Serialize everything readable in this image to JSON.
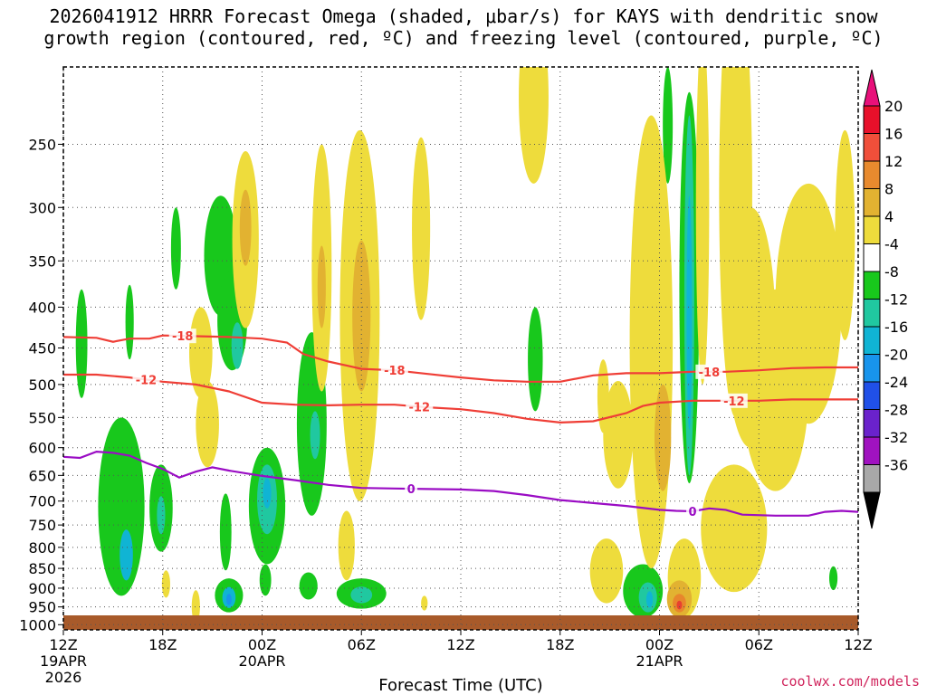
{
  "title_line1": "2026041912 HRRR Forecast Omega (shaded, μbar/s) for KAYS with dendritic snow",
  "title_line2": "growth region (contoured, red, ºC) and freezing level (contoured, purple, ºC)",
  "credit": "coolwx.com/models",
  "colors": {
    "sink_weak": "#eedc3c",
    "sink_mod": "#e2b231",
    "sink_strong": "#e8862c",
    "sink_max": "#e84030",
    "rise_weak": "#18c81c",
    "rise_mod": "#20c8a0",
    "rise_strong": "#10b4d4",
    "rise_max": "#1894ec",
    "dgz_line": "#ef3e36",
    "freezing_line": "#9a0cc4",
    "ground": "#a85a2a",
    "grid": "#555555"
  },
  "chart_data": {
    "type": "heatmap",
    "title": "2026041912 HRRR Forecast Omega (shaded, μbar/s) for KAYS with dendritic snow growth region (contoured, red, ºC) and freezing level (contoured, purple, ºC)",
    "xlabel": "Forecast Time (UTC)",
    "ylabel": "",
    "x_range_hours": [
      0,
      48
    ],
    "y_range_hPa": [
      200,
      1015
    ],
    "x_ticks": [
      {
        "hour": 0,
        "label": "12Z",
        "date": "19APR",
        "year": "2026"
      },
      {
        "hour": 6,
        "label": "18Z"
      },
      {
        "hour": 12,
        "label": "00Z",
        "date": "20APR"
      },
      {
        "hour": 18,
        "label": "06Z"
      },
      {
        "hour": 24,
        "label": "12Z"
      },
      {
        "hour": 30,
        "label": "18Z"
      },
      {
        "hour": 36,
        "label": "00Z",
        "date": "21APR"
      },
      {
        "hour": 42,
        "label": "06Z"
      },
      {
        "hour": 48,
        "label": "12Z"
      }
    ],
    "y_ticks": [
      250,
      300,
      350,
      400,
      450,
      500,
      550,
      600,
      650,
      700,
      750,
      800,
      850,
      900,
      950,
      1000
    ],
    "colorbar": {
      "levels": [
        20,
        16,
        12,
        8,
        4,
        -4,
        -8,
        -12,
        -16,
        -20,
        -24,
        -28,
        -32,
        -36
      ],
      "colors": [
        "#e8102a",
        "#f04f3a",
        "#e88a2e",
        "#e2b231",
        "#eedc3c",
        "#ffffff",
        "#18c81c",
        "#20c8a0",
        "#10b4d4",
        "#1894ec",
        "#2050e8",
        "#6a22cc",
        "#a012c0",
        "#a8a8a8"
      ],
      "top_arrow_color": "#e8107a",
      "bottom_arrow_color": "#000000"
    },
    "contours": [
      {
        "name": "-18",
        "label": "-18",
        "color": "#ef3e36",
        "labels_at_hours": [
          7.2,
          20.0,
          39.0
        ],
        "points": [
          [
            0,
            436
          ],
          [
            2,
            437
          ],
          [
            3,
            442
          ],
          [
            4,
            438
          ],
          [
            5.2,
            438
          ],
          [
            6,
            434
          ],
          [
            8,
            435
          ],
          [
            10,
            436
          ],
          [
            12,
            438
          ],
          [
            13.5,
            443
          ],
          [
            14.5,
            458
          ],
          [
            16,
            468
          ],
          [
            18,
            478
          ],
          [
            20,
            480
          ],
          [
            22,
            485
          ],
          [
            24,
            490
          ],
          [
            26,
            494
          ],
          [
            28,
            496
          ],
          [
            30,
            496
          ],
          [
            32,
            487
          ],
          [
            34,
            484
          ],
          [
            36,
            484
          ],
          [
            38,
            482
          ],
          [
            40,
            482
          ],
          [
            42,
            480
          ],
          [
            44,
            477
          ],
          [
            46,
            476
          ],
          [
            48,
            476
          ]
        ]
      },
      {
        "name": "-12",
        "label": "-12",
        "color": "#ef3e36",
        "labels_at_hours": [
          5.0,
          21.5,
          40.5
        ],
        "points": [
          [
            0,
            486
          ],
          [
            2,
            486
          ],
          [
            4,
            490
          ],
          [
            6,
            496
          ],
          [
            8,
            500
          ],
          [
            10,
            510
          ],
          [
            12,
            527
          ],
          [
            14,
            530
          ],
          [
            16,
            531
          ],
          [
            18,
            530
          ],
          [
            20,
            530
          ],
          [
            22,
            534
          ],
          [
            24,
            537
          ],
          [
            26,
            543
          ],
          [
            28,
            552
          ],
          [
            30,
            558
          ],
          [
            32,
            556
          ],
          [
            34,
            543
          ],
          [
            35,
            532
          ],
          [
            36,
            527
          ],
          [
            38,
            524
          ],
          [
            40,
            524
          ],
          [
            42,
            524
          ],
          [
            44,
            522
          ],
          [
            46,
            522
          ],
          [
            48,
            522
          ]
        ]
      },
      {
        "name": "0",
        "label": "0",
        "color": "#9a0cc4",
        "labels_at_hours": [
          21.0,
          38.0
        ],
        "points": [
          [
            0,
            616
          ],
          [
            1,
            618
          ],
          [
            2,
            607
          ],
          [
            3,
            609
          ],
          [
            4,
            614
          ],
          [
            5,
            627
          ],
          [
            6,
            638
          ],
          [
            7,
            654
          ],
          [
            8,
            643
          ],
          [
            9,
            635
          ],
          [
            10,
            641
          ],
          [
            12,
            651
          ],
          [
            14,
            659
          ],
          [
            16,
            668
          ],
          [
            18,
            674
          ],
          [
            20,
            675
          ],
          [
            22,
            676
          ],
          [
            24,
            677
          ],
          [
            26,
            680
          ],
          [
            28,
            688
          ],
          [
            30,
            698
          ],
          [
            32,
            704
          ],
          [
            34,
            710
          ],
          [
            36,
            718
          ],
          [
            37,
            720
          ],
          [
            38,
            721
          ],
          [
            39,
            715
          ],
          [
            40,
            718
          ],
          [
            41,
            728
          ],
          [
            43,
            730
          ],
          [
            45,
            730
          ],
          [
            46,
            722
          ],
          [
            47,
            720
          ],
          [
            48,
            722
          ]
        ]
      }
    ],
    "omega_regions": [
      {
        "cx": 1.1,
        "cy": 450,
        "rx": 0.35,
        "ry": 70,
        "value": -6
      },
      {
        "cx": 4.0,
        "cy": 420,
        "rx": 0.25,
        "ry": 45,
        "value": -6
      },
      {
        "cx": 3.5,
        "cy": 735,
        "rx": 1.4,
        "ry": 185,
        "value": -6
      },
      {
        "cx": 3.8,
        "cy": 820,
        "rx": 0.4,
        "ry": 60,
        "value": -14
      },
      {
        "cx": 5.9,
        "cy": 720,
        "rx": 0.7,
        "ry": 90,
        "value": -6
      },
      {
        "cx": 5.9,
        "cy": 730,
        "rx": 0.25,
        "ry": 40,
        "value": -10
      },
      {
        "cx": 6.8,
        "cy": 340,
        "rx": 0.3,
        "ry": 40,
        "value": -6
      },
      {
        "cx": 9.5,
        "cy": 350,
        "rx": 1.0,
        "ry": 60,
        "value": -6
      },
      {
        "cx": 10.2,
        "cy": 420,
        "rx": 0.9,
        "ry": 60,
        "value": -6
      },
      {
        "cx": 10.5,
        "cy": 448,
        "rx": 0.35,
        "ry": 30,
        "value": -10
      },
      {
        "cx": 9.8,
        "cy": 770,
        "rx": 0.35,
        "ry": 85,
        "value": -6
      },
      {
        "cx": 10.0,
        "cy": 920,
        "rx": 0.85,
        "ry": 45,
        "value": -6
      },
      {
        "cx": 10.0,
        "cy": 925,
        "rx": 0.4,
        "ry": 28,
        "value": -12
      },
      {
        "cx": 10.0,
        "cy": 930,
        "rx": 0.15,
        "ry": 15,
        "value": -16
      },
      {
        "cx": 12.3,
        "cy": 720,
        "rx": 1.1,
        "ry": 120,
        "value": -6
      },
      {
        "cx": 12.3,
        "cy": 700,
        "rx": 0.6,
        "ry": 70,
        "value": -10
      },
      {
        "cx": 12.3,
        "cy": 685,
        "rx": 0.25,
        "ry": 30,
        "value": -14
      },
      {
        "cx": 12.2,
        "cy": 880,
        "rx": 0.35,
        "ry": 40,
        "value": -6
      },
      {
        "cx": 15.0,
        "cy": 580,
        "rx": 0.9,
        "ry": 150,
        "value": -6
      },
      {
        "cx": 15.2,
        "cy": 580,
        "rx": 0.3,
        "ry": 40,
        "value": -10
      },
      {
        "cx": 14.8,
        "cy": 895,
        "rx": 0.55,
        "ry": 35,
        "value": -6
      },
      {
        "cx": 18.0,
        "cy": 915,
        "rx": 1.5,
        "ry": 40,
        "value": -6
      },
      {
        "cx": 18.0,
        "cy": 918,
        "rx": 0.65,
        "ry": 22,
        "value": -10
      },
      {
        "cx": 28.5,
        "cy": 470,
        "rx": 0.45,
        "ry": 70,
        "value": -6
      },
      {
        "cx": 35.0,
        "cy": 910,
        "rx": 1.2,
        "ry": 70,
        "value": -6
      },
      {
        "cx": 35.3,
        "cy": 925,
        "rx": 0.55,
        "ry": 40,
        "value": -10
      },
      {
        "cx": 35.4,
        "cy": 930,
        "rx": 0.2,
        "ry": 22,
        "value": -14
      },
      {
        "cx": 37.8,
        "cy": 440,
        "rx": 0.6,
        "ry": 225,
        "value": -6
      },
      {
        "cx": 37.8,
        "cy": 440,
        "rx": 0.3,
        "ry": 210,
        "value": -10
      },
      {
        "cx": 37.8,
        "cy": 430,
        "rx": 0.1,
        "ry": 140,
        "value": -14
      },
      {
        "cx": 36.1,
        "cy": 390,
        "rx": 0.5,
        "ry": 85,
        "value": -6
      },
      {
        "cx": 36.5,
        "cy": 240,
        "rx": 0.3,
        "ry": 40,
        "value": -6
      },
      {
        "cx": 41.3,
        "cy": 500,
        "rx": 0.2,
        "ry": 25,
        "value": -6
      },
      {
        "cx": 46.5,
        "cy": 875,
        "rx": 0.25,
        "ry": 30,
        "value": -6
      },
      {
        "cx": 11.0,
        "cy": 340,
        "rx": 0.8,
        "ry": 85,
        "value": 6
      },
      {
        "cx": 11.0,
        "cy": 320,
        "rx": 0.35,
        "ry": 35,
        "value": 10
      },
      {
        "cx": 8.3,
        "cy": 460,
        "rx": 0.7,
        "ry": 60,
        "value": 6
      },
      {
        "cx": 8.7,
        "cy": 565,
        "rx": 0.7,
        "ry": 70,
        "value": 6
      },
      {
        "cx": 8.0,
        "cy": 950,
        "rx": 0.25,
        "ry": 45,
        "value": 6
      },
      {
        "cx": 6.2,
        "cy": 890,
        "rx": 0.25,
        "ry": 35,
        "value": 6
      },
      {
        "cx": 15.6,
        "cy": 380,
        "rx": 0.6,
        "ry": 130,
        "value": 6
      },
      {
        "cx": 15.6,
        "cy": 380,
        "rx": 0.25,
        "ry": 45,
        "value": 10
      },
      {
        "cx": 17.9,
        "cy": 470,
        "rx": 1.2,
        "ry": 230,
        "value": 6
      },
      {
        "cx": 18.0,
        "cy": 420,
        "rx": 0.55,
        "ry": 90,
        "value": 10
      },
      {
        "cx": 17.1,
        "cy": 800,
        "rx": 0.5,
        "ry": 80,
        "value": 6
      },
      {
        "cx": 21.6,
        "cy": 330,
        "rx": 0.55,
        "ry": 85,
        "value": 6
      },
      {
        "cx": 21.8,
        "cy": 940,
        "rx": 0.2,
        "ry": 20,
        "value": 6
      },
      {
        "cx": 28.4,
        "cy": 225,
        "rx": 0.9,
        "ry": 55,
        "value": 6
      },
      {
        "cx": 32.6,
        "cy": 520,
        "rx": 0.35,
        "ry": 55,
        "value": 6
      },
      {
        "cx": 33.5,
        "cy": 585,
        "rx": 0.9,
        "ry": 90,
        "value": 6
      },
      {
        "cx": 32.8,
        "cy": 860,
        "rx": 1.0,
        "ry": 80,
        "value": 6
      },
      {
        "cx": 35.5,
        "cy": 540,
        "rx": 1.3,
        "ry": 310,
        "value": 6
      },
      {
        "cx": 36.2,
        "cy": 590,
        "rx": 0.5,
        "ry": 90,
        "value": 10
      },
      {
        "cx": 38.6,
        "cy": 340,
        "rx": 0.4,
        "ry": 160,
        "value": 6
      },
      {
        "cx": 40.6,
        "cy": 330,
        "rx": 1.0,
        "ry": 220,
        "value": 6
      },
      {
        "cx": 41.5,
        "cy": 450,
        "rx": 1.5,
        "ry": 150,
        "value": 6
      },
      {
        "cx": 43.0,
        "cy": 530,
        "rx": 2.0,
        "ry": 150,
        "value": 6
      },
      {
        "cx": 45.0,
        "cy": 420,
        "rx": 2.0,
        "ry": 140,
        "value": 6
      },
      {
        "cx": 47.2,
        "cy": 340,
        "rx": 0.6,
        "ry": 100,
        "value": 6
      },
      {
        "cx": 40.5,
        "cy": 770,
        "rx": 2.0,
        "ry": 140,
        "value": 6
      },
      {
        "cx": 37.5,
        "cy": 880,
        "rx": 1.0,
        "ry": 100,
        "value": 6
      },
      {
        "cx": 37.2,
        "cy": 930,
        "rx": 0.75,
        "ry": 50,
        "value": 10
      },
      {
        "cx": 37.2,
        "cy": 940,
        "rx": 0.4,
        "ry": 25,
        "value": 13
      },
      {
        "cx": 37.2,
        "cy": 945,
        "rx": 0.15,
        "ry": 12,
        "value": 17
      }
    ]
  }
}
